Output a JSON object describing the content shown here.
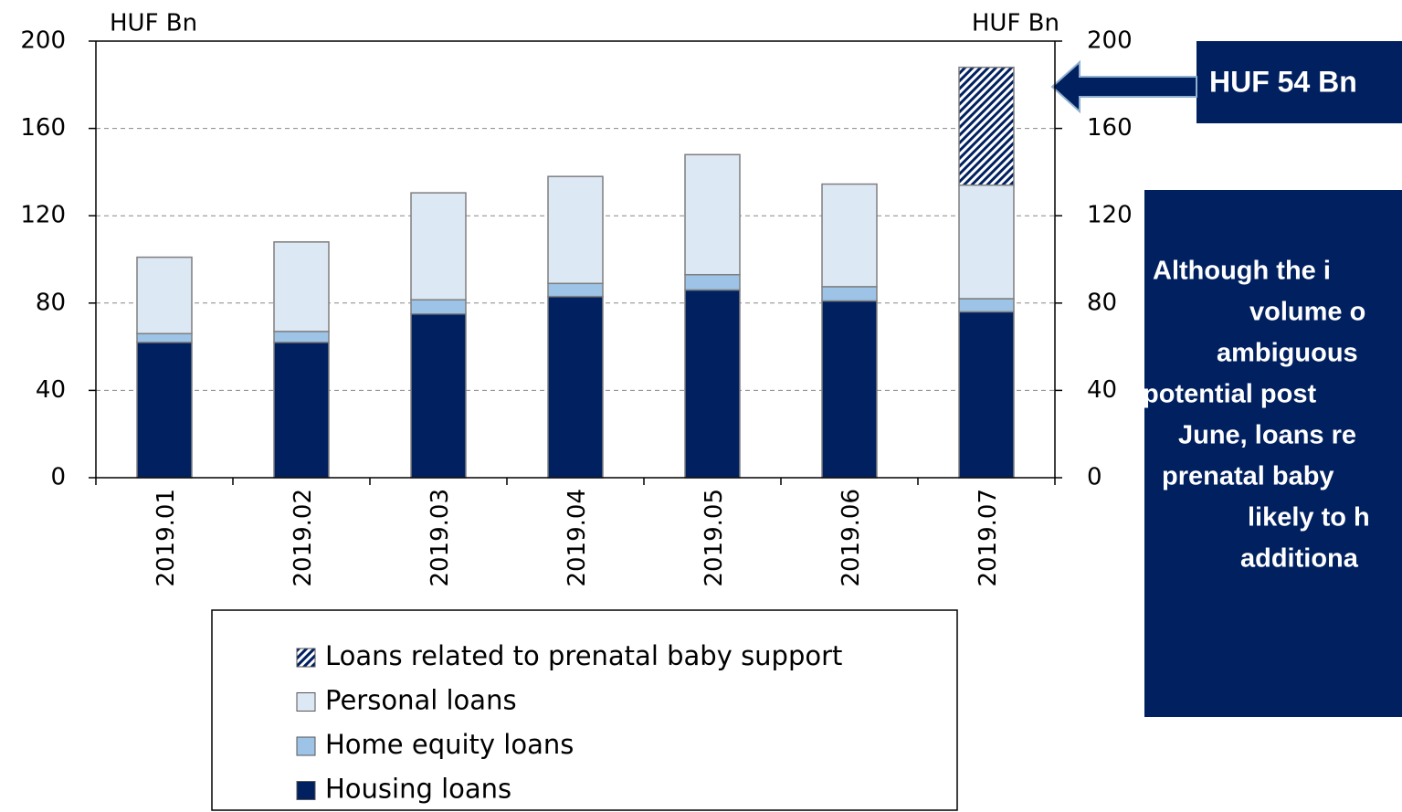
{
  "chart_data": {
    "type": "bar",
    "stacked": true,
    "y_unit_left": "HUF Bn",
    "y_unit_right": "HUF Bn",
    "categories": [
      "2019.01",
      "2019.02",
      "2019.03",
      "2019.04",
      "2019.05",
      "2019.06",
      "2019.07"
    ],
    "series": [
      {
        "name": "Housing loans",
        "color": "#002060",
        "values": [
          62,
          62,
          75,
          83,
          86,
          81,
          76
        ]
      },
      {
        "name": "Home equity loans",
        "color": "#9dc3e6",
        "values": [
          4,
          5,
          6.5,
          6,
          7,
          6.5,
          6
        ]
      },
      {
        "name": "Personal loans",
        "color": "#dde8f5",
        "values": [
          35,
          41,
          49,
          49,
          55,
          47,
          52
        ]
      },
      {
        "name": "Loans related to prenatal baby support",
        "color": "#002060",
        "hatch": true,
        "values": [
          null,
          null,
          null,
          null,
          null,
          null,
          54
        ]
      }
    ],
    "ylim": [
      0,
      200
    ],
    "yticks": [
      0,
      40,
      80,
      120,
      160,
      200
    ],
    "y2lim": [
      0,
      200
    ],
    "y2ticks": [
      0,
      40,
      80,
      120,
      160,
      200
    ],
    "grid": true,
    "legend": "bottom"
  },
  "callout": {
    "label": "HUF 54 Bn",
    "text_lines": [
      "Although the i",
      "volume o",
      "ambiguous",
      "potential post",
      "June, loans re",
      "prenatal baby",
      "likely to h",
      "additiona"
    ]
  }
}
